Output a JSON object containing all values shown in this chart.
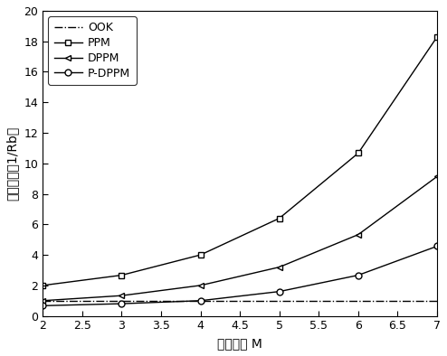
{
  "x": [
    2,
    3,
    4,
    5,
    6,
    7
  ],
  "OOK": [
    1.0,
    1.0,
    1.0,
    1.0,
    1.0,
    1.0
  ],
  "PPM": [
    2.0,
    2.67,
    4.0,
    6.4,
    10.67,
    18.29
  ],
  "DPPM": [
    1.0,
    1.33,
    2.0,
    3.2,
    5.33,
    9.14
  ],
  "P_DPPM": [
    0.67,
    0.8,
    1.0,
    1.6,
    2.67,
    4.57
  ],
  "xlabel": "编码位数 M",
  "ylabel": "带宽需求（1/Rb）",
  "xlim": [
    2,
    7
  ],
  "ylim": [
    0,
    20
  ],
  "xticks": [
    2,
    2.5,
    3,
    3.5,
    4,
    4.5,
    5,
    5.5,
    6,
    6.5,
    7
  ],
  "yticks": [
    0,
    2,
    4,
    6,
    8,
    10,
    12,
    14,
    16,
    18,
    20
  ],
  "legend_labels": [
    "OOK",
    "PPM",
    "DPPM",
    "P-DPPM"
  ],
  "line_color": "#000000",
  "bg_color": "#ffffff",
  "figsize": [
    4.94,
    3.94
  ],
  "dpi": 100
}
